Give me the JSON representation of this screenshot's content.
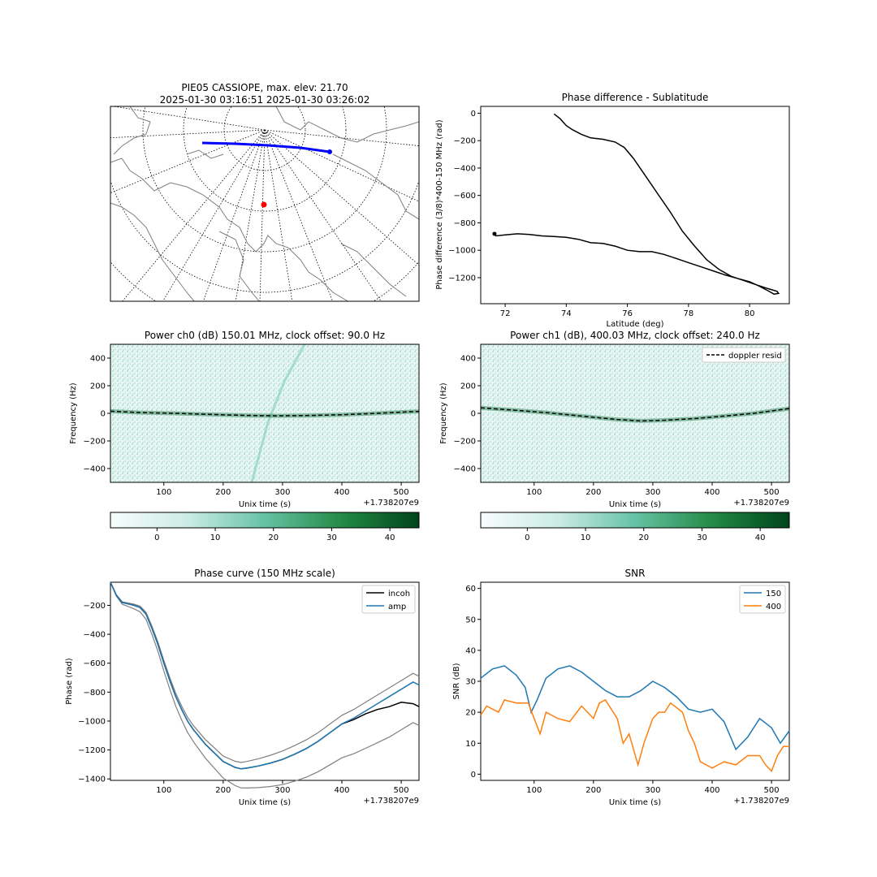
{
  "chart_data": [
    {
      "type": "map",
      "title": "PIE05 CASSIOPE, max. elev: 21.70",
      "subtitle": "2025-01-30 03:16:51 2025-01-30 03:26:02",
      "colors": {
        "track": "#0000ff",
        "station": "#ff0000",
        "coast": "#7f7f7f"
      }
    },
    {
      "type": "line",
      "title": "Phase difference - Sublatitude",
      "xlabel": "Latitude (deg)",
      "ylabel": "Phase difference (3/8)*400-150 MHz (rad)",
      "xlim": [
        71.2,
        81.3
      ],
      "ylim": [
        -1390,
        50
      ],
      "xticks": [
        72,
        74,
        76,
        78,
        80
      ],
      "yticks": [
        0,
        -200,
        -400,
        -600,
        -800,
        -1000,
        -1200
      ],
      "series": [
        {
          "color": "#000000",
          "points": [
            [
              73.6,
              -5
            ],
            [
              73.8,
              -40
            ],
            [
              74.0,
              -90
            ],
            [
              74.2,
              -120
            ],
            [
              74.5,
              -155
            ],
            [
              74.8,
              -180
            ],
            [
              75.2,
              -190
            ],
            [
              75.6,
              -210
            ],
            [
              75.9,
              -250
            ],
            [
              76.2,
              -330
            ],
            [
              76.6,
              -460
            ],
            [
              77.0,
              -590
            ],
            [
              77.4,
              -720
            ],
            [
              77.8,
              -860
            ],
            [
              78.2,
              -970
            ],
            [
              78.6,
              -1070
            ],
            [
              79.0,
              -1140
            ],
            [
              79.4,
              -1190
            ],
            [
              79.8,
              -1220
            ],
            [
              80.2,
              -1250
            ],
            [
              80.6,
              -1280
            ],
            [
              80.9,
              -1300
            ],
            [
              80.95,
              -1315
            ],
            [
              80.8,
              -1320
            ],
            [
              80.6,
              -1295
            ],
            [
              80.3,
              -1260
            ],
            [
              80.0,
              -1230
            ],
            [
              79.6,
              -1205
            ],
            [
              79.2,
              -1180
            ],
            [
              78.8,
              -1150
            ],
            [
              78.4,
              -1120
            ],
            [
              78.0,
              -1090
            ],
            [
              77.6,
              -1060
            ],
            [
              77.2,
              -1030
            ],
            [
              76.8,
              -1010
            ],
            [
              76.4,
              -1010
            ],
            [
              76.0,
              -1000
            ],
            [
              75.6,
              -970
            ],
            [
              75.2,
              -950
            ],
            [
              74.8,
              -945
            ],
            [
              74.4,
              -920
            ],
            [
              74.0,
              -905
            ],
            [
              73.6,
              -900
            ],
            [
              73.2,
              -895
            ],
            [
              72.8,
              -885
            ],
            [
              72.4,
              -880
            ],
            [
              72.0,
              -888
            ],
            [
              71.7,
              -895
            ],
            [
              71.65,
              -880
            ]
          ]
        }
      ]
    },
    {
      "type": "heatmap",
      "title": "Power ch0 (dB) 150.01 MHz, clock offset: 90.0 Hz",
      "xlabel": "Unix time (s)",
      "ylabel": "Frequency (Hz)",
      "offset_label": "+1.738207e9",
      "xlim": [
        10,
        530
      ],
      "ylim": [
        -500,
        500
      ],
      "xticks": [
        100,
        200,
        300,
        400,
        500
      ],
      "yticks": [
        400,
        200,
        0,
        -200,
        -400
      ],
      "colorbar": {
        "ticks": [
          0,
          10,
          20,
          30,
          40
        ],
        "range": [
          -8,
          45
        ]
      },
      "curve": [
        [
          10,
          15
        ],
        [
          60,
          5
        ],
        [
          120,
          0
        ],
        [
          180,
          -8
        ],
        [
          240,
          -15
        ],
        [
          290,
          -18
        ],
        [
          350,
          -15
        ],
        [
          400,
          -10
        ],
        [
          450,
          -2
        ],
        [
          500,
          8
        ],
        [
          530,
          14
        ]
      ]
    },
    {
      "type": "heatmap",
      "title": "Power ch1 (dB), 400.03 MHz, clock offset: 240.0 Hz",
      "xlabel": "Unix time (s)",
      "ylabel": "Frequency (Hz)",
      "offset_label": "+1.738207e9",
      "xlim": [
        10,
        530
      ],
      "ylim": [
        -500,
        500
      ],
      "xticks": [
        100,
        200,
        300,
        400,
        500
      ],
      "yticks": [
        400,
        200,
        0,
        -200,
        -400
      ],
      "legend": [
        "doppler resid"
      ],
      "colorbar": {
        "ticks": [
          0,
          10,
          20,
          30,
          40
        ],
        "range": [
          -8,
          45
        ]
      },
      "curve": [
        [
          10,
          40
        ],
        [
          60,
          25
        ],
        [
          120,
          5
        ],
        [
          180,
          -20
        ],
        [
          240,
          -45
        ],
        [
          280,
          -55
        ],
        [
          320,
          -50
        ],
        [
          370,
          -38
        ],
        [
          420,
          -20
        ],
        [
          470,
          0
        ],
        [
          530,
          35
        ]
      ]
    },
    {
      "type": "line",
      "title": "Phase curve (150 MHz scale)",
      "xlabel": "Unix time (s)",
      "ylabel": "Phase (rad)",
      "offset_label": "+1.738207e9",
      "xlim": [
        10,
        530
      ],
      "ylim": [
        -1410,
        -40
      ],
      "xticks": [
        100,
        200,
        300,
        400,
        500
      ],
      "yticks": [
        -200,
        -400,
        -600,
        -800,
        -1000,
        -1200,
        -1400
      ],
      "legend": [
        "incoh",
        "amp"
      ],
      "series": [
        {
          "name": "incoh",
          "color": "#000000",
          "points": [
            [
              10,
              -40
            ],
            [
              20,
              -130
            ],
            [
              30,
              -180
            ],
            [
              40,
              -190
            ],
            [
              50,
              -200
            ],
            [
              60,
              -215
            ],
            [
              70,
              -260
            ],
            [
              80,
              -360
            ],
            [
              90,
              -470
            ],
            [
              100,
              -600
            ],
            [
              110,
              -720
            ],
            [
              120,
              -830
            ],
            [
              130,
              -920
            ],
            [
              140,
              -1000
            ],
            [
              150,
              -1060
            ],
            [
              160,
              -1110
            ],
            [
              170,
              -1160
            ],
            [
              180,
              -1200
            ],
            [
              190,
              -1240
            ],
            [
              200,
              -1280
            ],
            [
              210,
              -1300
            ],
            [
              220,
              -1320
            ],
            [
              230,
              -1330
            ],
            [
              240,
              -1325
            ],
            [
              260,
              -1310
            ],
            [
              280,
              -1290
            ],
            [
              300,
              -1265
            ],
            [
              320,
              -1230
            ],
            [
              340,
              -1190
            ],
            [
              360,
              -1140
            ],
            [
              380,
              -1080
            ],
            [
              400,
              -1020
            ],
            [
              420,
              -990
            ],
            [
              440,
              -950
            ],
            [
              460,
              -920
            ],
            [
              480,
              -900
            ],
            [
              500,
              -870
            ],
            [
              520,
              -880
            ],
            [
              530,
              -900
            ]
          ]
        },
        {
          "name": "amp",
          "color": "#1f77b4",
          "points": [
            [
              10,
              -40
            ],
            [
              20,
              -130
            ],
            [
              30,
              -180
            ],
            [
              40,
              -190
            ],
            [
              50,
              -200
            ],
            [
              60,
              -215
            ],
            [
              70,
              -260
            ],
            [
              80,
              -360
            ],
            [
              90,
              -470
            ],
            [
              100,
              -600
            ],
            [
              110,
              -720
            ],
            [
              120,
              -830
            ],
            [
              130,
              -920
            ],
            [
              140,
              -1000
            ],
            [
              150,
              -1060
            ],
            [
              160,
              -1110
            ],
            [
              170,
              -1160
            ],
            [
              180,
              -1200
            ],
            [
              190,
              -1240
            ],
            [
              200,
              -1280
            ],
            [
              210,
              -1300
            ],
            [
              220,
              -1320
            ],
            [
              230,
              -1330
            ],
            [
              240,
              -1325
            ],
            [
              260,
              -1310
            ],
            [
              280,
              -1290
            ],
            [
              300,
              -1265
            ],
            [
              320,
              -1230
            ],
            [
              340,
              -1190
            ],
            [
              360,
              -1140
            ],
            [
              380,
              -1080
            ],
            [
              400,
              -1020
            ],
            [
              420,
              -980
            ],
            [
              440,
              -930
            ],
            [
              460,
              -880
            ],
            [
              480,
              -830
            ],
            [
              500,
              -780
            ],
            [
              520,
              -730
            ],
            [
              530,
              -750
            ]
          ]
        }
      ],
      "bounds_color": "#808080"
    },
    {
      "type": "line",
      "title": "SNR",
      "xlabel": "Unix time (s)",
      "ylabel": "SNR (dB)",
      "offset_label": "+1.738207e9",
      "xlim": [
        10,
        530
      ],
      "ylim": [
        -2,
        62
      ],
      "xticks": [
        100,
        200,
        300,
        400,
        500
      ],
      "yticks": [
        0,
        10,
        20,
        30,
        40,
        50,
        60
      ],
      "legend": [
        "150",
        "400"
      ],
      "series": [
        {
          "name": "150",
          "color": "#1f77b4",
          "points": [
            [
              10,
              31
            ],
            [
              30,
              34
            ],
            [
              50,
              35
            ],
            [
              70,
              32
            ],
            [
              85,
              28
            ],
            [
              95,
              20
            ],
            [
              105,
              24
            ],
            [
              120,
              31
            ],
            [
              140,
              34
            ],
            [
              160,
              35
            ],
            [
              180,
              33
            ],
            [
              200,
              30
            ],
            [
              220,
              27
            ],
            [
              240,
              25
            ],
            [
              260,
              25
            ],
            [
              280,
              27
            ],
            [
              300,
              30
            ],
            [
              320,
              28
            ],
            [
              340,
              25
            ],
            [
              360,
              21
            ],
            [
              380,
              20
            ],
            [
              400,
              21
            ],
            [
              420,
              17
            ],
            [
              440,
              8
            ],
            [
              460,
              12
            ],
            [
              480,
              18
            ],
            [
              500,
              15
            ],
            [
              515,
              10
            ],
            [
              530,
              14
            ]
          ]
        },
        {
          "name": "400",
          "color": "#ff7f0e",
          "points": [
            [
              10,
              19
            ],
            [
              20,
              22
            ],
            [
              40,
              20
            ],
            [
              50,
              24
            ],
            [
              70,
              23
            ],
            [
              90,
              23
            ],
            [
              100,
              18
            ],
            [
              110,
              13
            ],
            [
              120,
              20
            ],
            [
              140,
              18
            ],
            [
              160,
              17
            ],
            [
              180,
              22
            ],
            [
              200,
              18
            ],
            [
              210,
              23
            ],
            [
              220,
              24
            ],
            [
              240,
              18
            ],
            [
              250,
              10
            ],
            [
              260,
              13
            ],
            [
              275,
              3
            ],
            [
              285,
              10
            ],
            [
              300,
              18
            ],
            [
              310,
              20
            ],
            [
              320,
              20
            ],
            [
              330,
              23
            ],
            [
              350,
              20
            ],
            [
              360,
              14
            ],
            [
              370,
              10
            ],
            [
              380,
              4
            ],
            [
              400,
              2
            ],
            [
              420,
              4
            ],
            [
              440,
              3
            ],
            [
              460,
              6
            ],
            [
              480,
              6
            ],
            [
              490,
              3
            ],
            [
              500,
              1
            ],
            [
              510,
              6
            ],
            [
              520,
              9
            ],
            [
              530,
              9
            ]
          ]
        }
      ]
    }
  ]
}
